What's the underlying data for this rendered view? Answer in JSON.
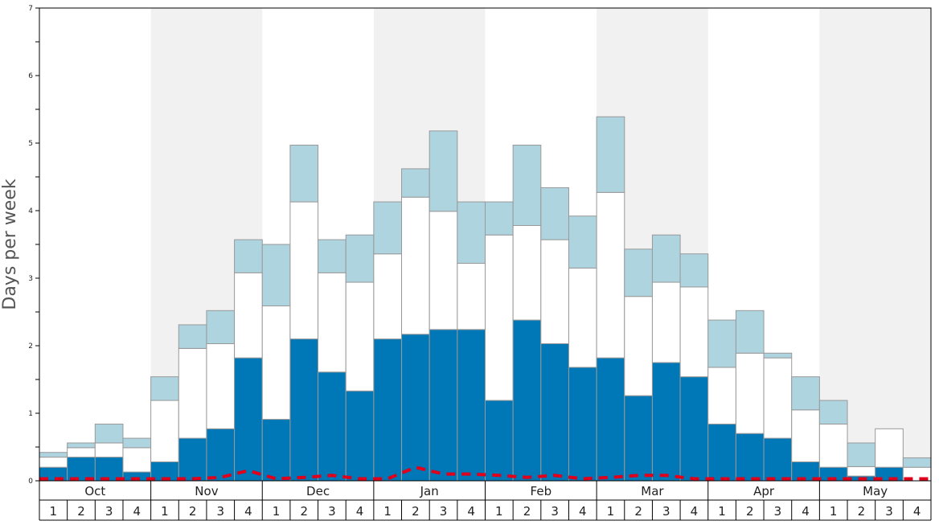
{
  "chart_data": {
    "type": "bar",
    "stacked": true,
    "ylabel": "Days per week",
    "ylim": [
      0,
      7
    ],
    "y_major_ticks": [
      "0",
      "1",
      "2",
      "3",
      "4",
      "5",
      "6",
      "7"
    ],
    "months": [
      "Oct",
      "Nov",
      "Dec",
      "Jan",
      "Feb",
      "Mar",
      "Apr",
      "May"
    ],
    "weeks": [
      "1",
      "2",
      "3",
      "4"
    ],
    "colors": {
      "bottom": "#0077b6",
      "middle": "#ffffff",
      "top": "#aed4e0",
      "line": "#e0001b",
      "band": "#f1f1f1",
      "bar_edge": "#999999"
    },
    "series": [
      {
        "values": [
          0.2,
          0.35,
          0.35,
          0.13,
          0.28,
          0.63,
          0.77,
          1.82,
          0.91,
          2.1,
          1.61,
          1.33,
          2.1,
          2.17,
          2.24,
          2.24,
          1.19,
          2.38,
          2.03,
          1.68,
          1.82,
          1.26,
          1.75,
          1.54,
          0.84,
          0.7,
          0.63,
          0.28,
          0.2,
          0.07,
          0.2,
          0.0
        ]
      },
      {
        "values": [
          0.15,
          0.14,
          0.21,
          0.36,
          0.91,
          1.33,
          1.26,
          1.26,
          1.68,
          2.03,
          1.47,
          1.61,
          1.26,
          2.03,
          1.75,
          0.98,
          2.45,
          1.4,
          1.54,
          1.47,
          2.45,
          1.47,
          1.19,
          1.33,
          0.84,
          1.19,
          1.19,
          0.77,
          0.64,
          0.14,
          0.57,
          0.2
        ]
      },
      {
        "values": [
          0.07,
          0.07,
          0.28,
          0.14,
          0.35,
          0.35,
          0.49,
          0.49,
          0.91,
          0.84,
          0.49,
          0.7,
          0.77,
          0.42,
          1.19,
          0.91,
          0.49,
          1.19,
          0.77,
          0.77,
          1.12,
          0.7,
          0.7,
          0.49,
          0.7,
          0.63,
          0.07,
          0.49,
          0.35,
          0.35,
          0.0,
          0.14
        ]
      },
      {
        "values": [
          0.03,
          0.03,
          0.03,
          0.03,
          0.03,
          0.03,
          0.05,
          0.15,
          0.03,
          0.05,
          0.08,
          0.03,
          0.03,
          0.2,
          0.1,
          0.1,
          0.08,
          0.05,
          0.08,
          0.03,
          0.05,
          0.08,
          0.08,
          0.03,
          0.03,
          0.03,
          0.03,
          0.03,
          0.03,
          0.03,
          0.03,
          0.03
        ]
      }
    ]
  }
}
